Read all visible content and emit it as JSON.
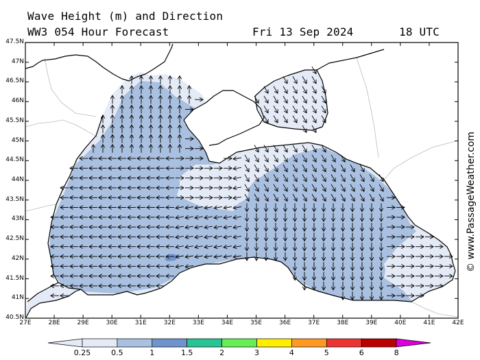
{
  "header": {
    "title": "Wave Height (m) and Direction",
    "model": "WW3 054 Hour Forecast",
    "date": "Fri 13 Sep 2024",
    "time": "18 UTC"
  },
  "credit": "© www.PassageWeather.com",
  "map": {
    "lon_range": [
      27,
      42
    ],
    "lat_range": [
      40.5,
      47.5
    ],
    "lon_ticks": [
      "27E",
      "28E",
      "29E",
      "30E",
      "31E",
      "32E",
      "33E",
      "34E",
      "35E",
      "36E",
      "37E",
      "38E",
      "39E",
      "40E",
      "41E",
      "42E"
    ],
    "lat_ticks": [
      "47.5N",
      "47N",
      "46.5N",
      "46N",
      "45.5N",
      "45N",
      "44.5N",
      "44N",
      "43.5N",
      "43N",
      "42.5N",
      "42N",
      "41.5N",
      "41N",
      "40.5N"
    ],
    "colors": {
      "sea_0_25": "#e4ebf6",
      "sea_0_5": "#a9c0e0",
      "sea_1": "#6f93cd",
      "land": "#ffffff",
      "coast": "#000000",
      "border": "#bbbbbb"
    }
  },
  "legend": {
    "labels": [
      "0.25",
      "0.5",
      "1",
      "1.5",
      "2",
      "3",
      "4",
      "5",
      "6",
      "8"
    ],
    "colors": [
      "#e4ebf6",
      "#a9c0e0",
      "#6f93cd",
      "#28c493",
      "#66ee55",
      "#ffee00",
      "#ff9922",
      "#ee3333",
      "#bb0000",
      "#dd00dd"
    ]
  }
}
